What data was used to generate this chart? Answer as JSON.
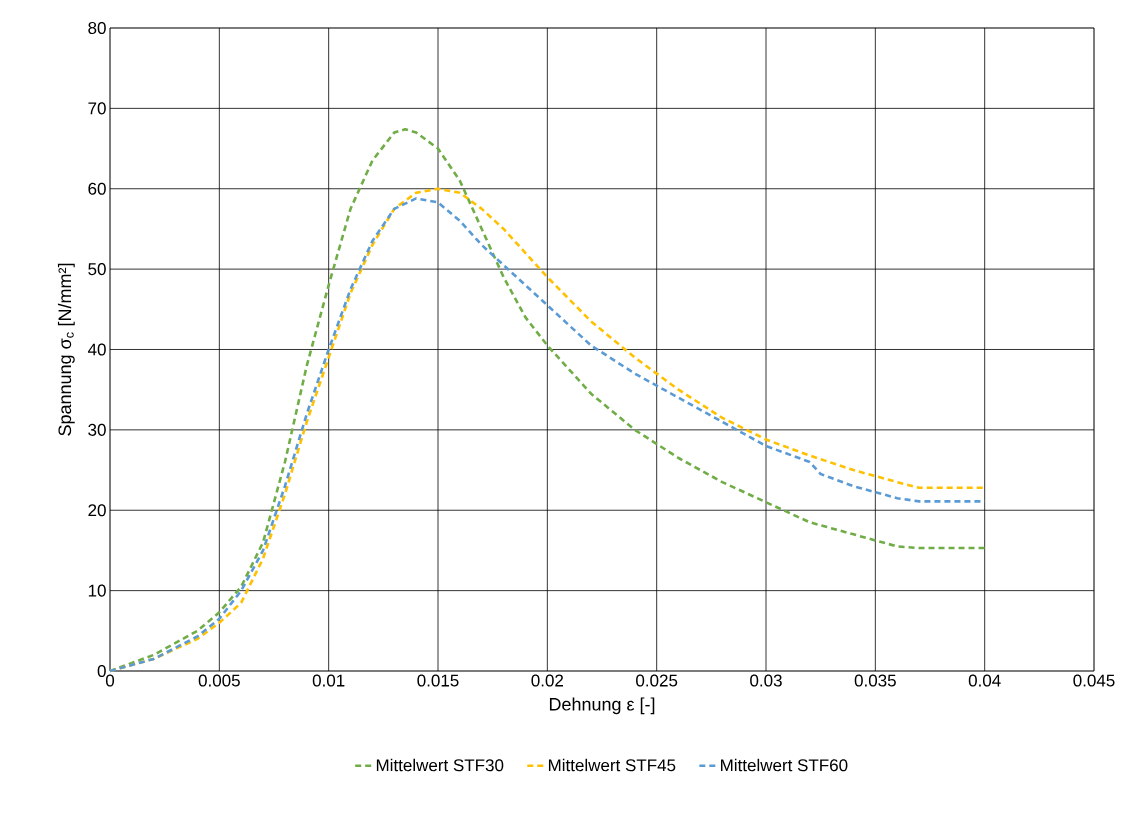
{
  "chart_data": {
    "type": "line",
    "xlabel": "Dehnung ε [-]",
    "ylabel": "Spannung σ$_{c}$ [N/mm²]",
    "xlim": [
      0,
      0.045
    ],
    "ylim": [
      0,
      80
    ],
    "xticks": [
      0,
      0.005,
      0.01,
      0.015,
      0.02,
      0.025,
      0.03,
      0.035,
      0.04,
      0.045
    ],
    "yticks": [
      0,
      10,
      20,
      30,
      40,
      50,
      60,
      70,
      80
    ],
    "grid": true,
    "legend": "bottom",
    "line_style": "dashed",
    "marker": "none",
    "series": [
      {
        "name": "Mittelwert STF30",
        "color": "#70ad47",
        "x": [
          0,
          0.002,
          0.004,
          0.005,
          0.006,
          0.007,
          0.008,
          0.009,
          0.01,
          0.011,
          0.012,
          0.013,
          0.0135,
          0.014,
          0.015,
          0.016,
          0.017,
          0.018,
          0.019,
          0.02,
          0.022,
          0.024,
          0.026,
          0.028,
          0.03,
          0.032,
          0.034,
          0.036,
          0.037,
          0.04
        ],
        "values": [
          0,
          2,
          5,
          7.3,
          10.5,
          16,
          26,
          38,
          48,
          57.5,
          63.5,
          67,
          67.4,
          67,
          65,
          61,
          55,
          49,
          44,
          40.5,
          34.5,
          30,
          26.5,
          23.5,
          21,
          18.5,
          17,
          15.5,
          15.3,
          15.3
        ]
      },
      {
        "name": "Mittelwert STF45",
        "color": "#ffc000",
        "x": [
          0,
          0.002,
          0.004,
          0.005,
          0.006,
          0.007,
          0.008,
          0.009,
          0.01,
          0.011,
          0.012,
          0.013,
          0.014,
          0.015,
          0.016,
          0.017,
          0.018,
          0.019,
          0.02,
          0.022,
          0.024,
          0.026,
          0.028,
          0.03,
          0.032,
          0.034,
          0.036,
          0.037,
          0.04
        ],
        "values": [
          0,
          1.5,
          4,
          6,
          8.5,
          14,
          22,
          31,
          39,
          47,
          53,
          57.5,
          59.5,
          60,
          59.5,
          57.5,
          55,
          52,
          49,
          43.5,
          39,
          35,
          31.5,
          28.8,
          26.8,
          25,
          23.5,
          22.8,
          22.8
        ]
      },
      {
        "name": "Mittelwert STF60",
        "color": "#5b9bd5",
        "x": [
          0,
          0.002,
          0.004,
          0.005,
          0.006,
          0.007,
          0.008,
          0.009,
          0.01,
          0.011,
          0.012,
          0.013,
          0.014,
          0.015,
          0.016,
          0.017,
          0.018,
          0.019,
          0.02,
          0.022,
          0.024,
          0.026,
          0.028,
          0.03,
          0.032,
          0.0325,
          0.034,
          0.036,
          0.037,
          0.04
        ],
        "values": [
          0,
          1.5,
          4.3,
          6.5,
          10,
          15,
          23,
          32,
          40,
          47.5,
          53.5,
          57.5,
          58.8,
          58.3,
          56,
          53,
          50.5,
          48,
          45.5,
          40.5,
          37,
          34,
          31,
          28,
          26,
          24.5,
          23,
          21.5,
          21.1,
          21.1
        ]
      }
    ]
  }
}
